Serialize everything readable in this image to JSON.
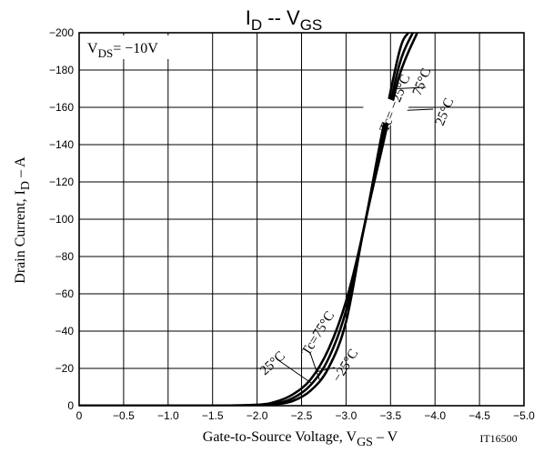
{
  "chart_data": {
    "type": "line",
    "title": {
      "main": "I",
      "sub1": "D",
      "mid": " -- V",
      "sub2": "GS"
    },
    "xlabel": {
      "pre": "Gate-to-Source Voltage, V",
      "sub": "GS",
      "post": " – V"
    },
    "ylabel": {
      "pre": "Drain Current, I",
      "sub": "D",
      "post": " – A"
    },
    "x_ticks": [
      "0",
      "−0.5",
      "−1.0",
      "−1.5",
      "−2.0",
      "−2.5",
      "−3.0",
      "−3.5",
      "−4.0",
      "−4.5",
      "−5.0"
    ],
    "y_ticks": [
      "0",
      "−20",
      "−40",
      "−60",
      "−80",
      "−100",
      "−120",
      "−140",
      "−160",
      "−180",
      "−200"
    ],
    "xlim": [
      0,
      -5.0
    ],
    "ylim": [
      0,
      -200
    ],
    "grid": true,
    "condition": {
      "pre": "V",
      "sub": "DS",
      "post": "= −10V"
    },
    "figure_id": "IT16500",
    "series": [
      {
        "name": "Tc= −25°C",
        "x": [
          0,
          -1.5,
          -2.0,
          -2.2,
          -2.4,
          -2.6,
          -2.8,
          -3.0,
          -3.2,
          -3.4,
          -3.6,
          -3.7
        ],
        "y": [
          0,
          0,
          -0.5,
          -2,
          -6,
          -14,
          -30,
          -56,
          -95,
          -145,
          -190,
          -200
        ]
      },
      {
        "name": "25°C",
        "x": [
          0,
          -1.5,
          -2.0,
          -2.2,
          -2.4,
          -2.6,
          -2.8,
          -3.0,
          -3.2,
          -3.4,
          -3.6,
          -3.75
        ],
        "y": [
          0,
          0,
          -0.3,
          -1,
          -4,
          -11,
          -25,
          -51,
          -95,
          -140,
          -183,
          -200
        ]
      },
      {
        "name": "75°C",
        "x": [
          0,
          -1.5,
          -2.0,
          -2.2,
          -2.4,
          -2.6,
          -2.8,
          -3.0,
          -3.2,
          -3.4,
          -3.6,
          -3.8
        ],
        "y": [
          0,
          0,
          -0.2,
          -0.7,
          -2.5,
          -8,
          -20,
          -45,
          -95,
          -137,
          -177,
          -200
        ]
      }
    ],
    "annotations": [
      "Tc= −25°C",
      "75°C",
      "25°C",
      "25°C",
      "Tc=75°C",
      "−25°C"
    ]
  }
}
